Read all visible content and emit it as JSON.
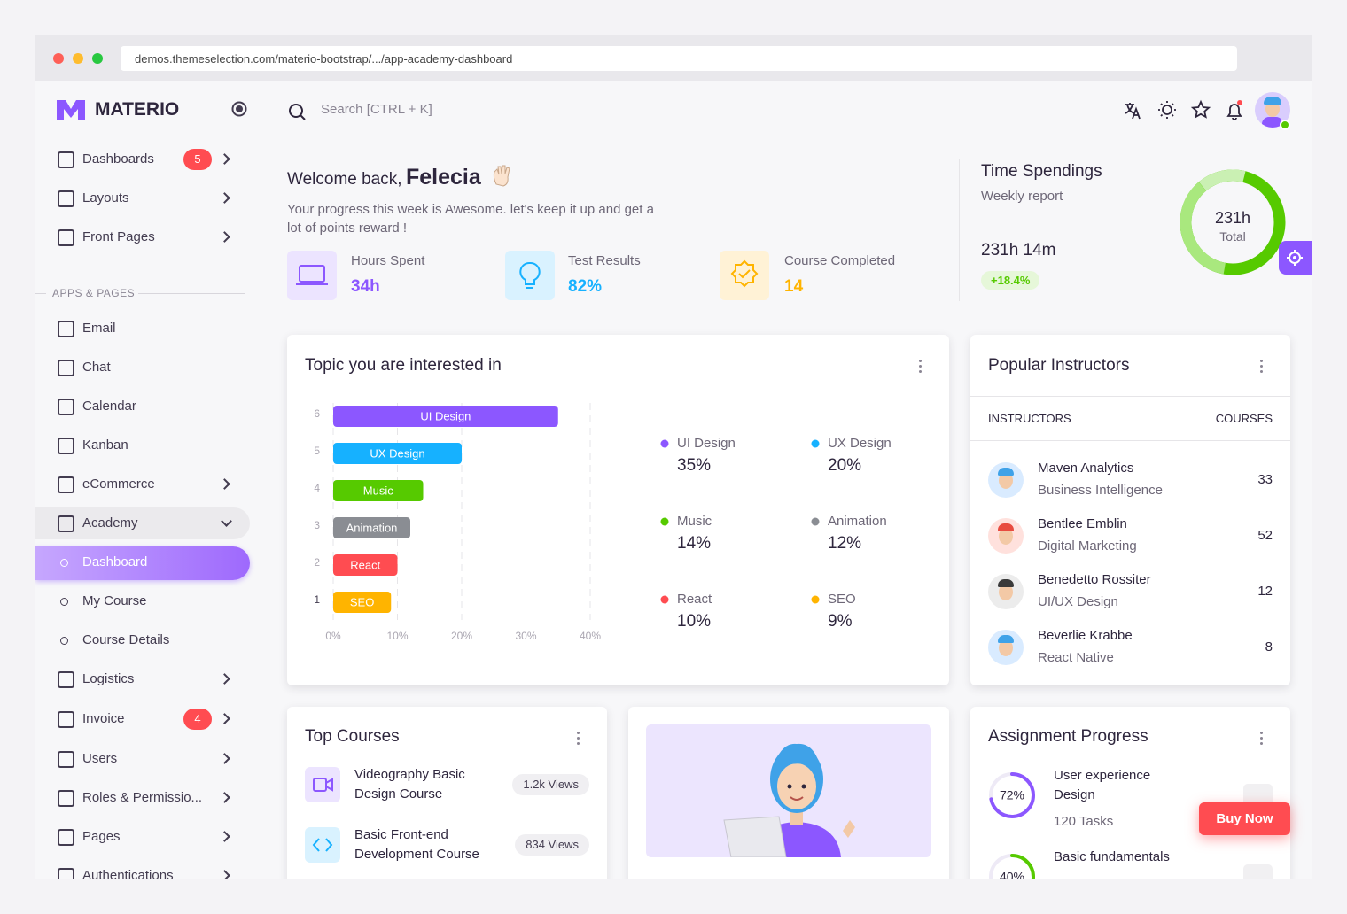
{
  "browser": {
    "url": "demos.themeselection.com/materio-bootstrap/.../app-academy-dashboard"
  },
  "sidebar": {
    "brand": "MATERIO",
    "section": "APPS & PAGES",
    "menu": [
      {
        "label": "Dashboards",
        "badge": 5
      },
      {
        "label": "Layouts"
      },
      {
        "label": "Front Pages"
      }
    ],
    "apps": [
      {
        "label": "Email"
      },
      {
        "label": "Chat"
      },
      {
        "label": "Calendar"
      },
      {
        "label": "Kanban"
      },
      {
        "label": "eCommerce"
      },
      {
        "label": "Academy"
      },
      {
        "label": "Dashboard"
      },
      {
        "label": "My Course"
      },
      {
        "label": "Course Details"
      },
      {
        "label": "Logistics"
      },
      {
        "label": "Invoice",
        "badge": 4
      },
      {
        "label": "Users"
      },
      {
        "label": "Roles & Permissio..."
      },
      {
        "label": "Pages"
      },
      {
        "label": "Authentications"
      }
    ]
  },
  "topbar": {
    "search": "Search [CTRL + K]"
  },
  "welcome": {
    "greeting": "Welcome back,",
    "name": "Felecia",
    "text": "Your progress this week is Awesome. let's keep it up and get a lot of points reward !",
    "stats": [
      {
        "label": "Hours Spent",
        "value": "34h"
      },
      {
        "label": "Test Results",
        "value": "82%"
      },
      {
        "label": "Course Completed",
        "value": 14
      }
    ]
  },
  "time_spendings": {
    "title": "Time Spendings",
    "subtitle": "Weekly report",
    "total": "231h 14m",
    "change": "+18.4%",
    "donut_value": "231h",
    "donut_label": "Total"
  },
  "chart_data": {
    "type": "bar",
    "title": "Topic you are interested in",
    "categories": [
      "UI Design",
      "UX Design",
      "Music",
      "Animation",
      "React",
      "SEO"
    ],
    "values": [
      35,
      20,
      14,
      12,
      10,
      9
    ],
    "value_labels": [
      "35%",
      "20%",
      "14%",
      "12%",
      "10%",
      "9%"
    ],
    "colors": [
      "#8c57ff",
      "#16b1ff",
      "#56ca00",
      "#8a8d93",
      "#ff4c51",
      "#ffb400"
    ],
    "row_numbers": [
      6,
      5,
      4,
      3,
      2,
      1
    ],
    "xlim": [
      0,
      40
    ],
    "xticks": [
      {
        "value": 0,
        "label": "0%"
      },
      {
        "value": 10,
        "label": "10%"
      },
      {
        "value": 20,
        "label": "20%"
      },
      {
        "value": 30,
        "label": "30%"
      },
      {
        "value": 40,
        "label": "40%"
      }
    ],
    "grid": true
  },
  "instructors": {
    "title": "Popular Instructors",
    "col1": "INSTRUCTORS",
    "col2": "COURSES",
    "rows": [
      {
        "name": "Maven Analytics",
        "field": "Business Intelligence",
        "courses": 33
      },
      {
        "name": "Bentlee Emblin",
        "field": "Digital Marketing",
        "courses": 52
      },
      {
        "name": "Benedetto Rossiter",
        "field": "UI/UX Design",
        "courses": 12
      },
      {
        "name": "Beverlie Krabbe",
        "field": "React Native",
        "courses": 8
      }
    ]
  },
  "top_courses": {
    "title": "Top Courses",
    "rows": [
      {
        "title": "Videography Basic Design Course",
        "views": "1.2k Views"
      },
      {
        "title": "Basic Front-end Development Course",
        "views": "834 Views"
      }
    ]
  },
  "assignment": {
    "title": "Assignment Progress",
    "rows": [
      {
        "title": "User experience Design",
        "tasks": "120 Tasks",
        "progress": 72,
        "progress_label": "72%"
      },
      {
        "title": "Basic fundamentals",
        "progress": 40,
        "progress_label": "40%"
      }
    ]
  },
  "buy_now": "Buy Now"
}
